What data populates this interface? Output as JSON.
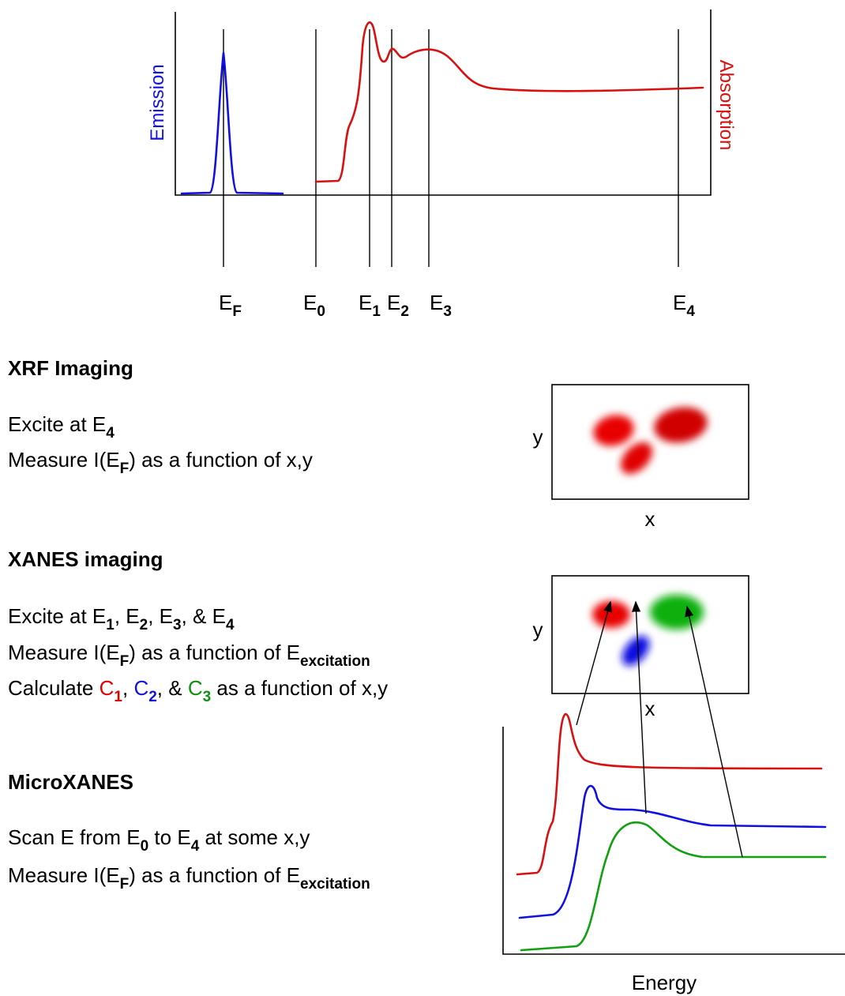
{
  "spectrum": {
    "left_axis_label": "Emission",
    "right_axis_label": "Absorption",
    "markers": [
      {
        "base": "E",
        "sub": "F"
      },
      {
        "base": "E",
        "sub": "0"
      },
      {
        "base": "E",
        "sub": "1"
      },
      {
        "base": "E",
        "sub": "2"
      },
      {
        "base": "E",
        "sub": "3"
      },
      {
        "base": "E",
        "sub": "4"
      }
    ]
  },
  "sections": [
    {
      "title": "XRF Imaging",
      "lines": [
        [
          {
            "text": "Excite at E"
          },
          {
            "sub": "4"
          }
        ],
        [
          {
            "text": "Measure I(E"
          },
          {
            "sub": "F"
          },
          {
            "text": ") as a function of x,y"
          }
        ]
      ]
    },
    {
      "title": "XANES imaging",
      "lines": [
        [
          {
            "text": "Excite at E"
          },
          {
            "sub": "1"
          },
          {
            "text": ", E"
          },
          {
            "sub": "2"
          },
          {
            "text": ", E"
          },
          {
            "sub": "3"
          },
          {
            "text": ", & E"
          },
          {
            "sub": "4"
          }
        ],
        [
          {
            "text": "Measure I(E"
          },
          {
            "sub": "F"
          },
          {
            "text": ") as a function of E"
          },
          {
            "sub": "excitation"
          }
        ],
        [
          {
            "text": "Calculate "
          },
          {
            "text": "C",
            "color": "#e00000"
          },
          {
            "sub": "1",
            "color": "#e00000"
          },
          {
            "text": ", "
          },
          {
            "text": "C",
            "color": "#1010e0"
          },
          {
            "sub": "2",
            "color": "#1010e0"
          },
          {
            "text": ", & "
          },
          {
            "text": "C",
            "color": "#109010"
          },
          {
            "sub": "3",
            "color": "#109010"
          },
          {
            "text": " as a function of x,y"
          }
        ]
      ]
    },
    {
      "title": "MicroXANES",
      "lines": [
        [
          {
            "text": "Scan E from E"
          },
          {
            "sub": "0"
          },
          {
            "text": " to E"
          },
          {
            "sub": "4"
          },
          {
            "text": " at some x,y"
          }
        ],
        [
          {
            "text": "Measure I(E"
          },
          {
            "sub": "F"
          },
          {
            "text": ") as a function of E"
          },
          {
            "sub": "excitation"
          }
        ]
      ]
    }
  ],
  "xrf_map": {
    "y_label": "y",
    "x_label": "x"
  },
  "xanes_map": {
    "y_label": "y",
    "x_label": "x"
  },
  "microxanes_plot": {
    "x_label": "Energy"
  }
}
